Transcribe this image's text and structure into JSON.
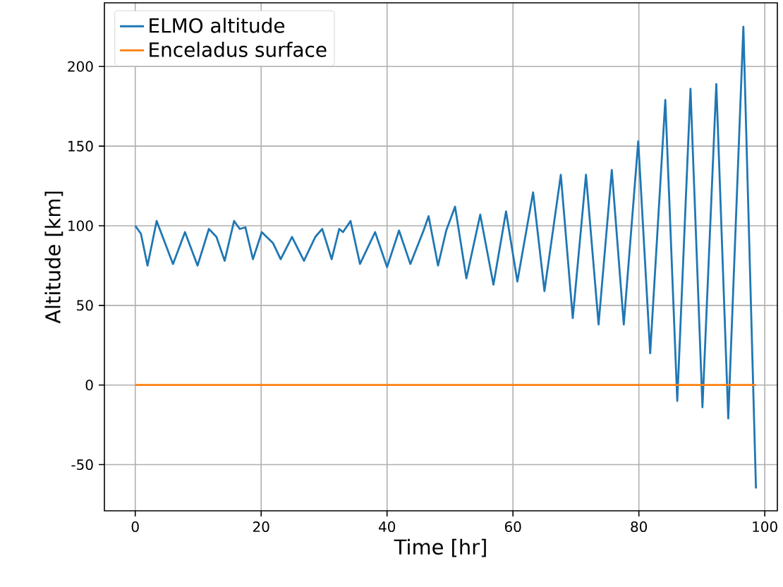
{
  "chart_data": {
    "type": "line",
    "xlabel": "Time [hr]",
    "ylabel": "Altitude [km]",
    "xlim": [
      -4.9,
      102
    ],
    "ylim": [
      -79,
      240
    ],
    "xticks": [
      0,
      20,
      40,
      60,
      80,
      100
    ],
    "yticks": [
      -50,
      0,
      50,
      100,
      150,
      200
    ],
    "grid": true,
    "legend": "top left",
    "marker": "none",
    "line_style": "solid",
    "series": [
      {
        "name": "ELMO altitude",
        "color": "#1f77b4",
        "x": [
          0,
          0.9,
          1.95,
          3.4,
          6.0,
          7.9,
          9.9,
          11.7,
          12.9,
          14.2,
          15.7,
          16.6,
          17.5,
          18.7,
          20.1,
          21.9,
          23.1,
          24.9,
          26.8,
          28.6,
          29.7,
          31.2,
          32.4,
          33,
          34.2,
          35.7,
          38.1,
          40,
          41.9,
          43.7,
          45.8,
          46.6,
          48.1,
          49.4,
          50.8,
          52.6,
          54.8,
          56.9,
          58.9,
          60.7,
          63.2,
          65,
          67.6,
          69.5,
          71.6,
          73.6,
          75.7,
          77.6,
          79.9,
          81.8,
          84.2,
          86.1,
          88.2,
          90.1,
          92.3,
          94.2,
          96.6,
          98.6
        ],
        "values": [
          100,
          95,
          75,
          103,
          76,
          96,
          75,
          98,
          93,
          78,
          103,
          98,
          99,
          79,
          96,
          89,
          79,
          93,
          78,
          93,
          98,
          79,
          98,
          96,
          103,
          76,
          96,
          74,
          97,
          76,
          97,
          106,
          75,
          97,
          112,
          67,
          107,
          63,
          109,
          65,
          121,
          59,
          132,
          42,
          132,
          38,
          135,
          38,
          153,
          20,
          179,
          -10,
          186,
          -14,
          189,
          -21,
          225,
          -65
        ]
      },
      {
        "name": "Enceladus surface",
        "color": "#ff7f0e",
        "x": [
          0,
          98.6
        ],
        "values": [
          0,
          0
        ]
      }
    ]
  }
}
